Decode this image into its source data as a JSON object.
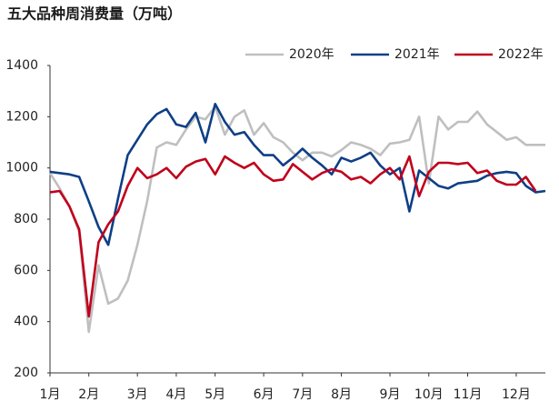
{
  "chart_data": {
    "type": "line",
    "title": "五大品种周消费量（万吨）",
    "categories": [
      "1月",
      null,
      null,
      null,
      "2月",
      null,
      null,
      null,
      null,
      "3月",
      null,
      null,
      null,
      "4月",
      null,
      null,
      null,
      "5月",
      null,
      null,
      null,
      null,
      "6月",
      null,
      null,
      null,
      "7月",
      null,
      null,
      null,
      "8月",
      null,
      null,
      null,
      null,
      "9月",
      null,
      null,
      null,
      "10月",
      null,
      null,
      null,
      "11月",
      null,
      null,
      null,
      null,
      "12月",
      null,
      null,
      null
    ],
    "series": [
      {
        "name": "2020年",
        "color": "#bfbfbf",
        "values": [
          980,
          920,
          850,
          750,
          360,
          620,
          470,
          490,
          560,
          700,
          870,
          1080,
          1100,
          1090,
          1150,
          1200,
          1190,
          1240,
          1130,
          1200,
          1225,
          1130,
          1175,
          1120,
          1100,
          1060,
          1030,
          1060,
          1060,
          1045,
          1070,
          1100,
          1090,
          1075,
          1050,
          1095,
          1100,
          1110,
          1200,
          940,
          1200,
          1150,
          1180,
          1180,
          1220,
          1170,
          1140,
          1110,
          1120,
          1090,
          1090,
          1090
        ]
      },
      {
        "name": "2021年",
        "color": "#0e3f86",
        "values": [
          985,
          980,
          975,
          965,
          870,
          770,
          700,
          880,
          1050,
          1110,
          1170,
          1210,
          1230,
          1170,
          1160,
          1215,
          1100,
          1250,
          1180,
          1130,
          1140,
          1090,
          1050,
          1050,
          1010,
          1040,
          1075,
          1040,
          1010,
          975,
          1040,
          1025,
          1040,
          1060,
          1010,
          975,
          1000,
          830,
          990,
          960,
          930,
          920,
          940,
          945,
          950,
          970,
          980,
          985,
          980,
          930,
          905,
          910
        ]
      },
      {
        "name": "2022年",
        "color": "#c0001c",
        "values": [
          905,
          910,
          850,
          760,
          420,
          710,
          780,
          830,
          930,
          1000,
          960,
          975,
          1000,
          960,
          1005,
          1025,
          1035,
          975,
          1045,
          1020,
          1000,
          1020,
          975,
          950,
          955,
          1015,
          985,
          955,
          980,
          995,
          985,
          955,
          965,
          940,
          975,
          1000,
          955,
          1045,
          890,
          985,
          1020,
          1020,
          1015,
          1020,
          980,
          990,
          950,
          935,
          935,
          965,
          910,
          null
        ]
      }
    ],
    "ylim": [
      200,
      1400
    ],
    "yticks": [
      200,
      400,
      600,
      800,
      1000,
      1200,
      1400
    ],
    "legend": "top-right"
  }
}
